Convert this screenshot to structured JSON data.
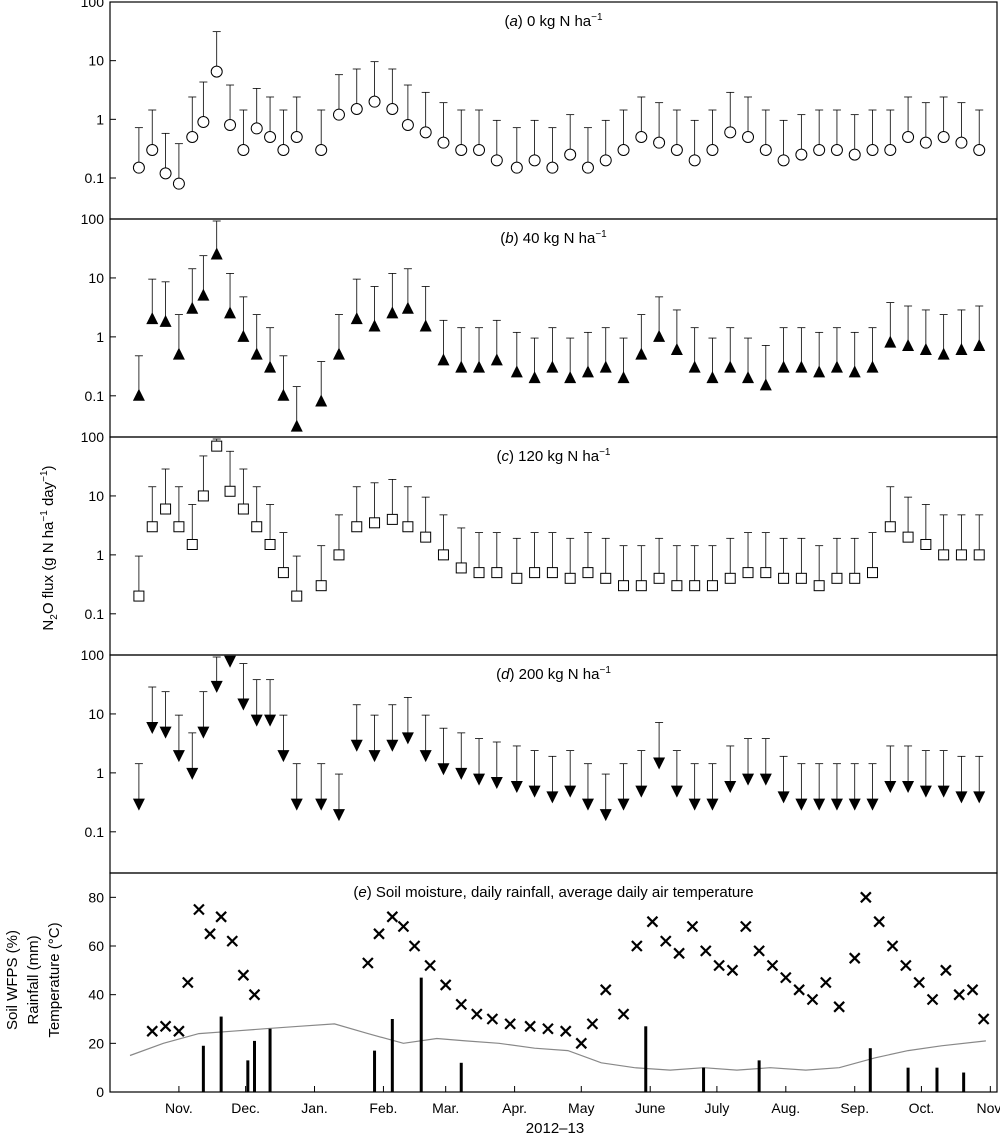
{
  "figure": {
    "xlabel": "2012–13",
    "ylabel_flux_parts": [
      "N",
      "2",
      "O flux (g N ha",
      "−1",
      " day",
      "−1",
      ")"
    ],
    "ylabel_panel_e": [
      "Soil WFPS (%)",
      "Rainfall (mm)",
      "Temperature (°C)"
    ]
  },
  "chart_data": [
    {
      "type": "scatter",
      "panel": "a",
      "title_parts": [
        "(",
        "a",
        ") 0 kg N ha",
        "−1"
      ],
      "marker": "open-circle",
      "yscale": "log",
      "ylim": [
        0.02,
        100
      ],
      "yticks": [
        "0.1",
        "1",
        "10",
        "100"
      ],
      "series": [
        {
          "name": "0 kg N ha−1",
          "x": [
            "2012-10-14",
            "2012-10-20",
            "2012-10-26",
            "2012-11-01",
            "2012-11-07",
            "2012-11-12",
            "2012-11-18",
            "2012-11-24",
            "2012-11-30",
            "2012-12-06",
            "2012-12-12",
            "2012-12-18",
            "2012-12-24",
            "2013-01-04",
            "2013-01-12",
            "2013-01-20",
            "2013-01-28",
            "2013-02-05",
            "2013-02-12",
            "2013-02-20",
            "2013-02-28",
            "2013-03-08",
            "2013-03-16",
            "2013-03-24",
            "2013-04-02",
            "2013-04-10",
            "2013-04-18",
            "2013-04-26",
            "2013-05-04",
            "2013-05-12",
            "2013-05-20",
            "2013-05-28",
            "2013-06-05",
            "2013-06-13",
            "2013-06-21",
            "2013-06-29",
            "2013-07-07",
            "2013-07-15",
            "2013-07-23",
            "2013-07-31",
            "2013-08-08",
            "2013-08-16",
            "2013-08-24",
            "2013-09-01",
            "2013-09-09",
            "2013-09-17",
            "2013-09-25",
            "2013-10-03",
            "2013-10-11",
            "2013-10-19",
            "2013-10-27"
          ],
          "y": [
            0.15,
            0.3,
            0.12,
            0.08,
            0.5,
            0.9,
            6.5,
            0.8,
            0.3,
            0.7,
            0.5,
            0.3,
            0.5,
            0.3,
            1.2,
            1.5,
            2.0,
            1.5,
            0.8,
            0.6,
            0.4,
            0.3,
            0.3,
            0.2,
            0.15,
            0.2,
            0.15,
            0.25,
            0.15,
            0.2,
            0.3,
            0.5,
            0.4,
            0.3,
            0.2,
            0.3,
            0.6,
            0.5,
            0.3,
            0.2,
            0.25,
            0.3,
            0.3,
            0.25,
            0.3,
            0.3,
            0.5,
            0.4,
            0.5,
            0.4,
            0.3
          ]
        }
      ]
    },
    {
      "type": "scatter",
      "panel": "b",
      "title_parts": [
        "(",
        "b",
        ") 40 kg N ha",
        "−1"
      ],
      "marker": "filled-triangle-up",
      "yscale": "log",
      "ylim": [
        0.02,
        100
      ],
      "yticks": [
        "0.1",
        "1",
        "10",
        "100"
      ],
      "series": [
        {
          "name": "40 kg N ha−1",
          "x": [
            "2012-10-14",
            "2012-10-20",
            "2012-10-26",
            "2012-11-01",
            "2012-11-07",
            "2012-11-12",
            "2012-11-18",
            "2012-11-24",
            "2012-11-30",
            "2012-12-06",
            "2012-12-12",
            "2012-12-18",
            "2012-12-24",
            "2013-01-04",
            "2013-01-12",
            "2013-01-20",
            "2013-01-28",
            "2013-02-05",
            "2013-02-12",
            "2013-02-20",
            "2013-02-28",
            "2013-03-08",
            "2013-03-16",
            "2013-03-24",
            "2013-04-02",
            "2013-04-10",
            "2013-04-18",
            "2013-04-26",
            "2013-05-04",
            "2013-05-12",
            "2013-05-20",
            "2013-05-28",
            "2013-06-05",
            "2013-06-13",
            "2013-06-21",
            "2013-06-29",
            "2013-07-07",
            "2013-07-15",
            "2013-07-23",
            "2013-07-31",
            "2013-08-08",
            "2013-08-16",
            "2013-08-24",
            "2013-09-01",
            "2013-09-09",
            "2013-09-17",
            "2013-09-25",
            "2013-10-03",
            "2013-10-11",
            "2013-10-19",
            "2013-10-27"
          ],
          "y": [
            0.1,
            2.0,
            1.8,
            0.5,
            3.0,
            5.0,
            25,
            2.5,
            1.0,
            0.5,
            0.3,
            0.1,
            0.03,
            0.08,
            0.5,
            2.0,
            1.5,
            2.5,
            3.0,
            1.5,
            0.4,
            0.3,
            0.3,
            0.4,
            0.25,
            0.2,
            0.3,
            0.2,
            0.25,
            0.3,
            0.2,
            0.5,
            1.0,
            0.6,
            0.3,
            0.2,
            0.3,
            0.2,
            0.15,
            0.3,
            0.3,
            0.25,
            0.3,
            0.25,
            0.3,
            0.8,
            0.7,
            0.6,
            0.5,
            0.6,
            0.7
          ]
        }
      ]
    },
    {
      "type": "scatter",
      "panel": "c",
      "title_parts": [
        "(",
        "c",
        ") 120 kg N ha",
        "−1"
      ],
      "marker": "open-square",
      "yscale": "log",
      "ylim": [
        0.02,
        100
      ],
      "yticks": [
        "0.1",
        "1",
        "10",
        "100"
      ],
      "series": [
        {
          "name": "120 kg N ha−1",
          "x": [
            "2012-10-14",
            "2012-10-20",
            "2012-10-26",
            "2012-11-01",
            "2012-11-07",
            "2012-11-12",
            "2012-11-18",
            "2012-11-24",
            "2012-11-30",
            "2012-12-06",
            "2012-12-12",
            "2012-12-18",
            "2012-12-24",
            "2013-01-04",
            "2013-01-12",
            "2013-01-20",
            "2013-01-28",
            "2013-02-05",
            "2013-02-12",
            "2013-02-20",
            "2013-02-28",
            "2013-03-08",
            "2013-03-16",
            "2013-03-24",
            "2013-04-02",
            "2013-04-10",
            "2013-04-18",
            "2013-04-26",
            "2013-05-04",
            "2013-05-12",
            "2013-05-20",
            "2013-05-28",
            "2013-06-05",
            "2013-06-13",
            "2013-06-21",
            "2013-06-29",
            "2013-07-07",
            "2013-07-15",
            "2013-07-23",
            "2013-07-31",
            "2013-08-08",
            "2013-08-16",
            "2013-08-24",
            "2013-09-01",
            "2013-09-09",
            "2013-09-17",
            "2013-09-25",
            "2013-10-03",
            "2013-10-11",
            "2013-10-19",
            "2013-10-27"
          ],
          "y": [
            0.2,
            3.0,
            6.0,
            3.0,
            1.5,
            10,
            70,
            12,
            6,
            3,
            1.5,
            0.5,
            0.2,
            0.3,
            1.0,
            3.0,
            3.5,
            4.0,
            3.0,
            2.0,
            1.0,
            0.6,
            0.5,
            0.5,
            0.4,
            0.5,
            0.5,
            0.4,
            0.5,
            0.4,
            0.3,
            0.3,
            0.4,
            0.3,
            0.3,
            0.3,
            0.4,
            0.5,
            0.5,
            0.4,
            0.4,
            0.3,
            0.4,
            0.4,
            0.5,
            3.0,
            2.0,
            1.5,
            1.0,
            1.0,
            1.0
          ]
        }
      ]
    },
    {
      "type": "scatter",
      "panel": "d",
      "title_parts": [
        "(",
        "d",
        ") 200 kg N ha",
        "−1"
      ],
      "marker": "filled-triangle-down",
      "yscale": "log",
      "ylim": [
        0.02,
        100
      ],
      "yticks": [
        "0.1",
        "1",
        "10",
        "100"
      ],
      "series": [
        {
          "name": "200 kg N ha−1",
          "x": [
            "2012-10-14",
            "2012-10-20",
            "2012-10-26",
            "2012-11-01",
            "2012-11-07",
            "2012-11-12",
            "2012-11-18",
            "2012-11-24",
            "2012-11-30",
            "2012-12-06",
            "2012-12-12",
            "2012-12-18",
            "2012-12-24",
            "2013-01-04",
            "2013-01-12",
            "2013-01-20",
            "2013-01-28",
            "2013-02-05",
            "2013-02-12",
            "2013-02-20",
            "2013-02-28",
            "2013-03-08",
            "2013-03-16",
            "2013-03-24",
            "2013-04-02",
            "2013-04-10",
            "2013-04-18",
            "2013-04-26",
            "2013-05-04",
            "2013-05-12",
            "2013-05-20",
            "2013-05-28",
            "2013-06-05",
            "2013-06-13",
            "2013-06-21",
            "2013-06-29",
            "2013-07-07",
            "2013-07-15",
            "2013-07-23",
            "2013-07-31",
            "2013-08-08",
            "2013-08-16",
            "2013-08-24",
            "2013-09-01",
            "2013-09-09",
            "2013-09-17",
            "2013-09-25",
            "2013-10-03",
            "2013-10-11",
            "2013-10-19",
            "2013-10-27"
          ],
          "y": [
            0.3,
            6.0,
            5.0,
            2.0,
            1.0,
            5,
            30,
            80,
            15,
            8,
            8,
            2,
            0.3,
            0.3,
            0.2,
            3.0,
            2.0,
            3.0,
            4.0,
            2.0,
            1.2,
            1.0,
            0.8,
            0.7,
            0.6,
            0.5,
            0.4,
            0.5,
            0.3,
            0.2,
            0.3,
            0.5,
            1.5,
            0.5,
            0.3,
            0.3,
            0.6,
            0.8,
            0.8,
            0.4,
            0.3,
            0.3,
            0.3,
            0.3,
            0.3,
            0.6,
            0.6,
            0.5,
            0.5,
            0.4,
            0.4
          ]
        }
      ]
    },
    {
      "type": "line",
      "panel": "e",
      "title_parts": [
        "(",
        "e",
        ") Soil moisture, daily rainfall, average daily air temperature"
      ],
      "ylim": [
        0,
        90
      ],
      "yticks": [
        "0",
        "20",
        "40",
        "60",
        "80"
      ],
      "xticks": [
        "Nov.",
        "Dec.",
        "Jan.",
        "Feb.",
        "Mar.",
        "Apr.",
        "May",
        "June",
        "July",
        "Aug.",
        "Sep.",
        "Oct.",
        "Nov."
      ],
      "series": [
        {
          "name": "Soil WFPS (%)",
          "kind": "scatter",
          "marker": "x",
          "x": [
            "2012-10-20",
            "2012-10-26",
            "2012-11-01",
            "2012-11-05",
            "2012-11-10",
            "2012-11-15",
            "2012-11-20",
            "2012-11-25",
            "2012-11-30",
            "2012-12-05",
            "2013-01-25",
            "2013-01-30",
            "2013-02-05",
            "2013-02-10",
            "2013-02-15",
            "2013-02-22",
            "2013-03-01",
            "2013-03-08",
            "2013-03-15",
            "2013-03-22",
            "2013-03-30",
            "2013-04-08",
            "2013-04-16",
            "2013-04-24",
            "2013-05-01",
            "2013-05-06",
            "2013-05-12",
            "2013-05-20",
            "2013-05-26",
            "2013-06-02",
            "2013-06-08",
            "2013-06-14",
            "2013-06-20",
            "2013-06-26",
            "2013-07-02",
            "2013-07-08",
            "2013-07-14",
            "2013-07-20",
            "2013-07-26",
            "2013-08-01",
            "2013-08-07",
            "2013-08-13",
            "2013-08-19",
            "2013-08-25",
            "2013-09-01",
            "2013-09-06",
            "2013-09-12",
            "2013-09-18",
            "2013-09-24",
            "2013-09-30",
            "2013-10-06",
            "2013-10-12",
            "2013-10-18",
            "2013-10-24",
            "2013-10-29"
          ],
          "y": [
            25,
            27,
            25,
            45,
            75,
            65,
            72,
            62,
            48,
            40,
            53,
            65,
            72,
            68,
            60,
            52,
            44,
            36,
            32,
            30,
            28,
            27,
            26,
            25,
            20,
            28,
            42,
            32,
            60,
            70,
            62,
            57,
            68,
            58,
            52,
            50,
            68,
            58,
            52,
            47,
            42,
            38,
            45,
            35,
            55,
            80,
            70,
            60,
            52,
            45,
            38,
            50,
            40,
            42,
            30
          ]
        },
        {
          "name": "Temperature (°C)",
          "kind": "line",
          "x": [
            "2012-10-10",
            "2012-10-25",
            "2012-11-10",
            "2012-11-25",
            "2012-12-10",
            "2012-12-25",
            "2013-01-10",
            "2013-01-25",
            "2013-02-10",
            "2013-02-25",
            "2013-03-10",
            "2013-03-25",
            "2013-04-10",
            "2013-04-25",
            "2013-05-10",
            "2013-05-25",
            "2013-06-10",
            "2013-06-25",
            "2013-07-10",
            "2013-07-25",
            "2013-08-10",
            "2013-08-25",
            "2013-09-10",
            "2013-09-25",
            "2013-10-10",
            "2013-10-30"
          ],
          "y": [
            15,
            20,
            24,
            25,
            26,
            27,
            28,
            24,
            20,
            22,
            21,
            20,
            18,
            17,
            12,
            10,
            9,
            10,
            9,
            10,
            9,
            10,
            14,
            17,
            19,
            21
          ]
        },
        {
          "name": "Rainfall (mm)",
          "kind": "bar",
          "x": [
            "2012-11-12",
            "2012-11-20",
            "2012-12-02",
            "2012-12-05",
            "2012-12-12",
            "2013-01-28",
            "2013-02-05",
            "2013-02-18",
            "2013-03-08",
            "2013-05-30",
            "2013-06-25",
            "2013-07-20",
            "2013-09-08",
            "2013-09-25",
            "2013-10-08",
            "2013-10-20"
          ],
          "y": [
            19,
            31,
            13,
            21,
            26,
            17,
            30,
            47,
            12,
            27,
            10,
            13,
            18,
            10,
            10,
            8
          ]
        }
      ]
    }
  ]
}
